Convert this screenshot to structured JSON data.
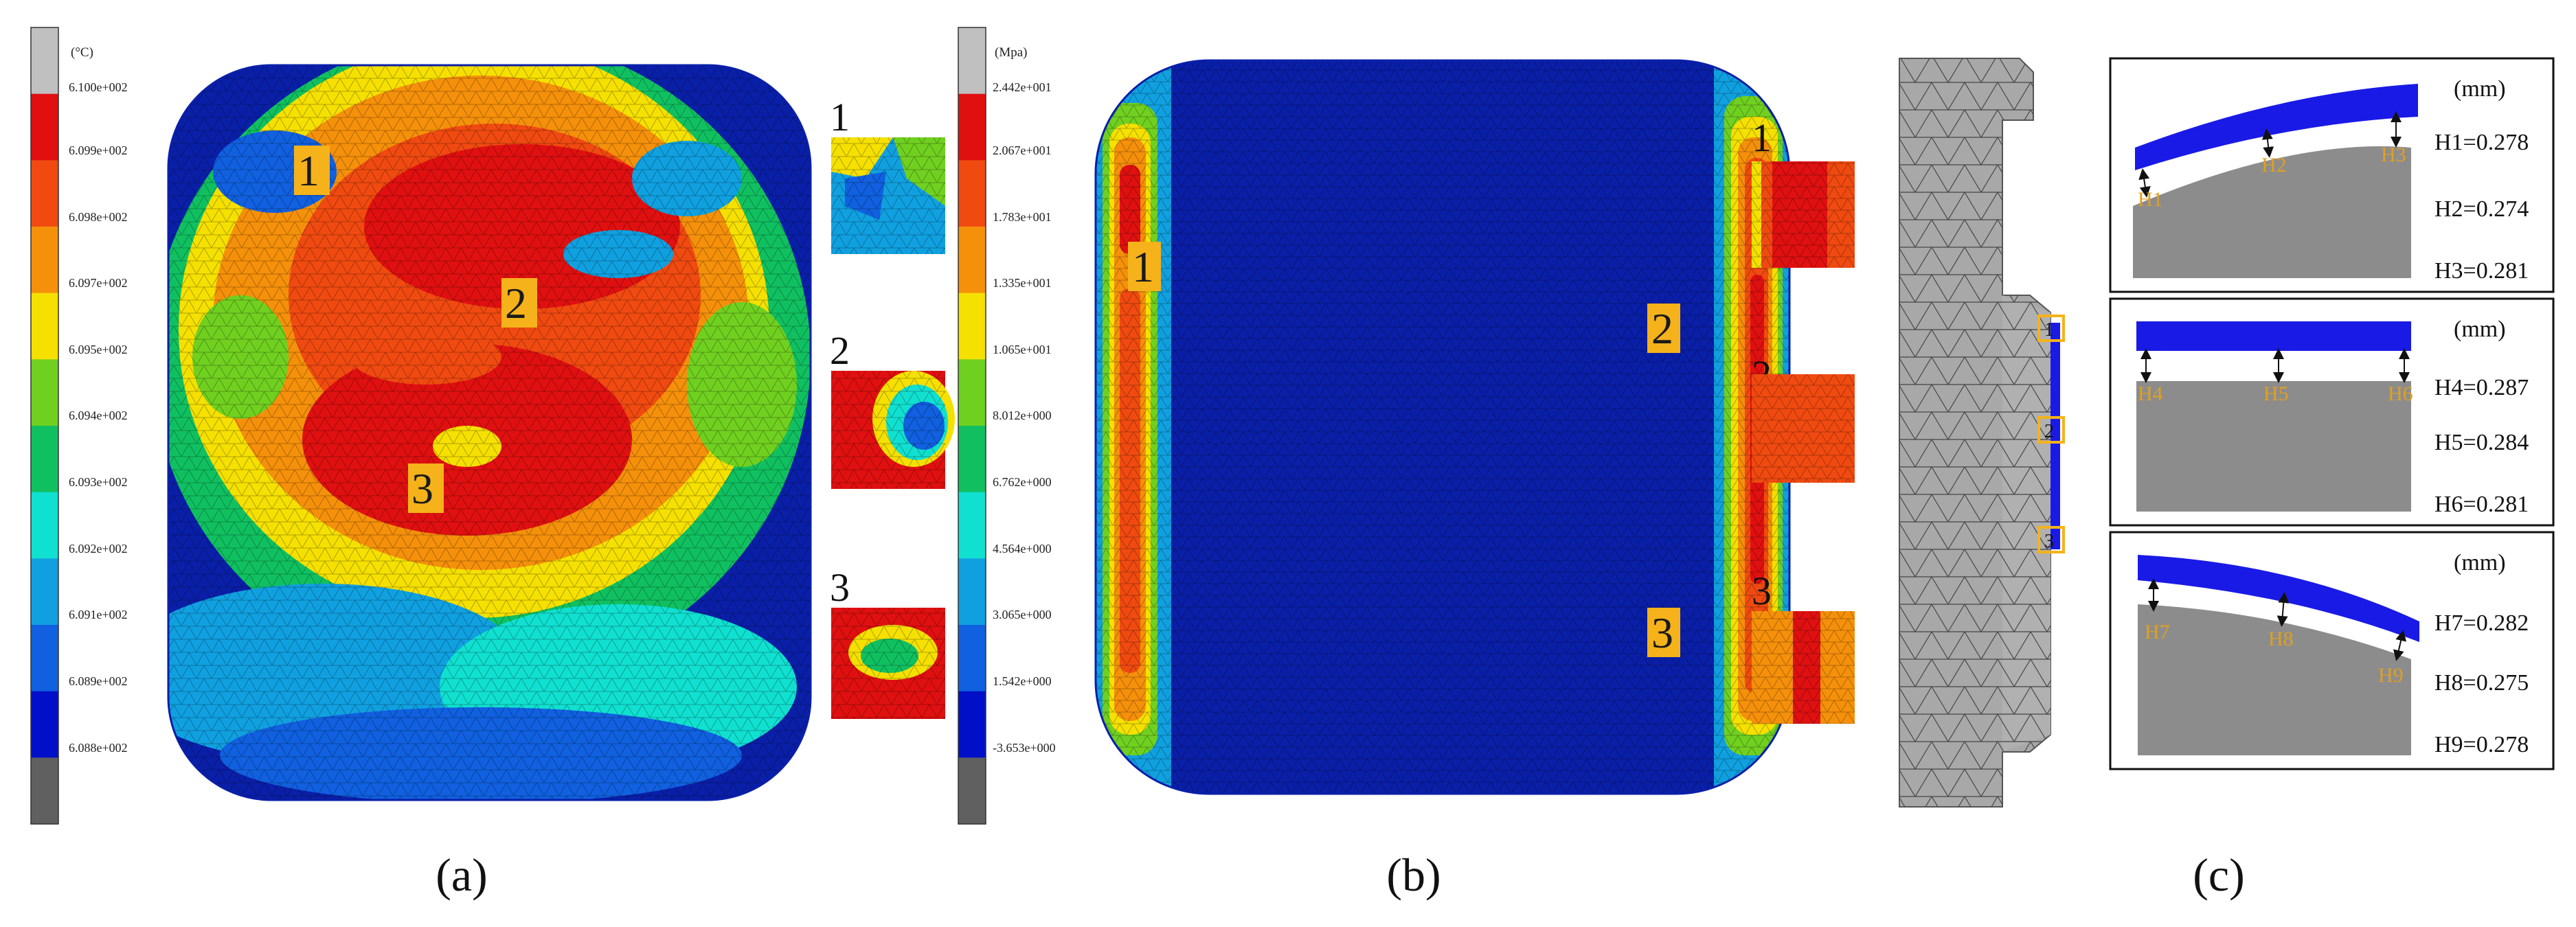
{
  "figure": {
    "panel_a": {
      "caption": "(a)",
      "legend_unit": "(°C)",
      "legend_values": [
        "6.100e+002",
        "6.099e+002",
        "6.098e+002",
        "6.097e+002",
        "6.095e+002",
        "6.094e+002",
        "6.093e+002",
        "6.092e+002",
        "6.091e+002",
        "6.089e+002",
        "6.088e+002"
      ],
      "markers": [
        "1",
        "2",
        "3"
      ],
      "inset_labels": [
        "1",
        "2",
        "3"
      ]
    },
    "panel_b": {
      "caption": "(b)",
      "legend_unit": "(Mpa)",
      "legend_values": [
        "2.442e+001",
        "2.067e+001",
        "1.783e+001",
        "1.335e+001",
        "1.065e+001",
        "8.012e+000",
        "6.762e+000",
        "4.564e+000",
        "3.065e+000",
        "1.542e+000",
        "-3.653e+000"
      ],
      "markers": [
        "1",
        "2",
        "3"
      ],
      "inset_labels": [
        "1",
        "2",
        "3"
      ]
    },
    "panel_c": {
      "caption": "(c)",
      "section_markers": [
        "1",
        "2",
        "3"
      ],
      "boxes": [
        {
          "unit": "(mm)",
          "tags": [
            "H1",
            "H2",
            "H3"
          ],
          "values": [
            "H1=0.278",
            "H2=0.274",
            "H3=0.281"
          ]
        },
        {
          "unit": "(mm)",
          "tags": [
            "H4",
            "H5",
            "H6"
          ],
          "values": [
            "H4=0.287",
            "H5=0.284",
            "H6=0.281"
          ]
        },
        {
          "unit": "(mm)",
          "tags": [
            "H7",
            "H8",
            "H9"
          ],
          "values": [
            "H7=0.282",
            "H8=0.275",
            "H9=0.278"
          ]
        }
      ]
    },
    "colors": {
      "legend_scale": [
        "#c0c0c0",
        "#e01010",
        "#f04a10",
        "#f5900a",
        "#f5e000",
        "#70d020",
        "#10c060",
        "#10e0d0",
        "#10a0e0",
        "#1060e0",
        "#0010c8",
        "#606060"
      ],
      "mesh_blue": "#0a1fa8",
      "film_blue": "#1a1ae6",
      "substrate_grey": "#8c8c8c",
      "marker_gold": "#f5b21a"
    }
  }
}
